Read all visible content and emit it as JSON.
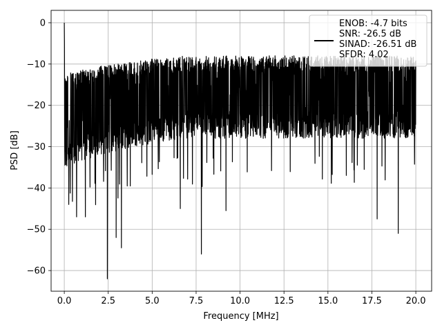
{
  "chart_data": {
    "type": "line",
    "title": "",
    "xlabel": "Frequency [MHz]",
    "ylabel": "PSD [dB]",
    "xlim": [
      -0.75,
      20.9
    ],
    "ylim": [
      -65,
      3
    ],
    "grid": true,
    "x_ticks": [
      0.0,
      2.5,
      5.0,
      7.5,
      10.0,
      12.5,
      15.0,
      17.5,
      20.0
    ],
    "x_tick_labels": [
      "0.0",
      "2.5",
      "5.0",
      "7.5",
      "10.0",
      "12.5",
      "15.0",
      "17.5",
      "20.0"
    ],
    "y_ticks": [
      0,
      -10,
      -20,
      -30,
      -40,
      -50,
      -60
    ],
    "y_tick_labels": [
      "0",
      "−10",
      "−20",
      "−30",
      "−40",
      "−50",
      "−60"
    ],
    "legend": {
      "placement": "upper right",
      "lines": [
        "ENOB: -4.7 bits",
        "SNR: -26.5 dB",
        "SINAD: -26.51 dB",
        "SFDR: 4.02"
      ]
    },
    "series": [
      {
        "color": "#000000",
        "x_range": [
          0.0,
          20.0
        ],
        "peak": {
          "x": 0.0,
          "y": 0.0
        },
        "band_upper_db": [
          -13,
          -8
        ],
        "band_lower_db": [
          -36,
          -28
        ],
        "notable_minima": [
          {
            "x": 2.45,
            "y": -62
          },
          {
            "x": 7.8,
            "y": -56
          },
          {
            "x": 2.95,
            "y": -52
          },
          {
            "x": 19.0,
            "y": -51
          },
          {
            "x": 3.25,
            "y": -54.5
          },
          {
            "x": 9.2,
            "y": -45.5
          },
          {
            "x": 0.7,
            "y": -47
          },
          {
            "x": 1.2,
            "y": -47
          },
          {
            "x": 6.6,
            "y": -45
          },
          {
            "x": 17.8,
            "y": -47.5
          }
        ]
      }
    ]
  }
}
